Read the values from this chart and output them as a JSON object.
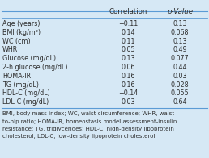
{
  "columns": [
    "Correlation",
    "p-Value"
  ],
  "rows": [
    [
      "Age (years)",
      "−0.11",
      "0.13"
    ],
    [
      "BMI (kg/m²)",
      "0.14",
      "0.068"
    ],
    [
      "WC (cm)",
      "0.11",
      "0.13"
    ],
    [
      "WHR",
      "0.05",
      "0.49"
    ],
    [
      "Glucose (mg/dL)",
      "0.13",
      "0.077"
    ],
    [
      "2-h glucose (mg/dL)",
      "0.06",
      "0.44"
    ],
    [
      "HOMA-IR",
      "0.16",
      "0.03"
    ],
    [
      "TG (mg/dL)",
      "0.16",
      "0.028"
    ],
    [
      "HDL-C (mg/dL)",
      "−0.14",
      "0.055"
    ],
    [
      "LDL-C (mg/dL)",
      "0.03",
      "0.64"
    ]
  ],
  "footnote_lines": [
    "BMI, body mass index; WC, waist circumference; WHR, waist-",
    "to-hip ratio; HOMA-IR, homeostasis model assessment-insulin",
    "resistance; TG, triglycerides; HDL-C, high-density lipoprotein",
    "cholesterol; LDL-C, low-density lipoprotein cholesterol."
  ],
  "bg_color": "#d6e8f5",
  "line_color": "#5b9bd5",
  "text_color": "#2e2e2e",
  "font_size": 5.8,
  "header_font_size": 6.2,
  "footnote_font_size": 5.0
}
